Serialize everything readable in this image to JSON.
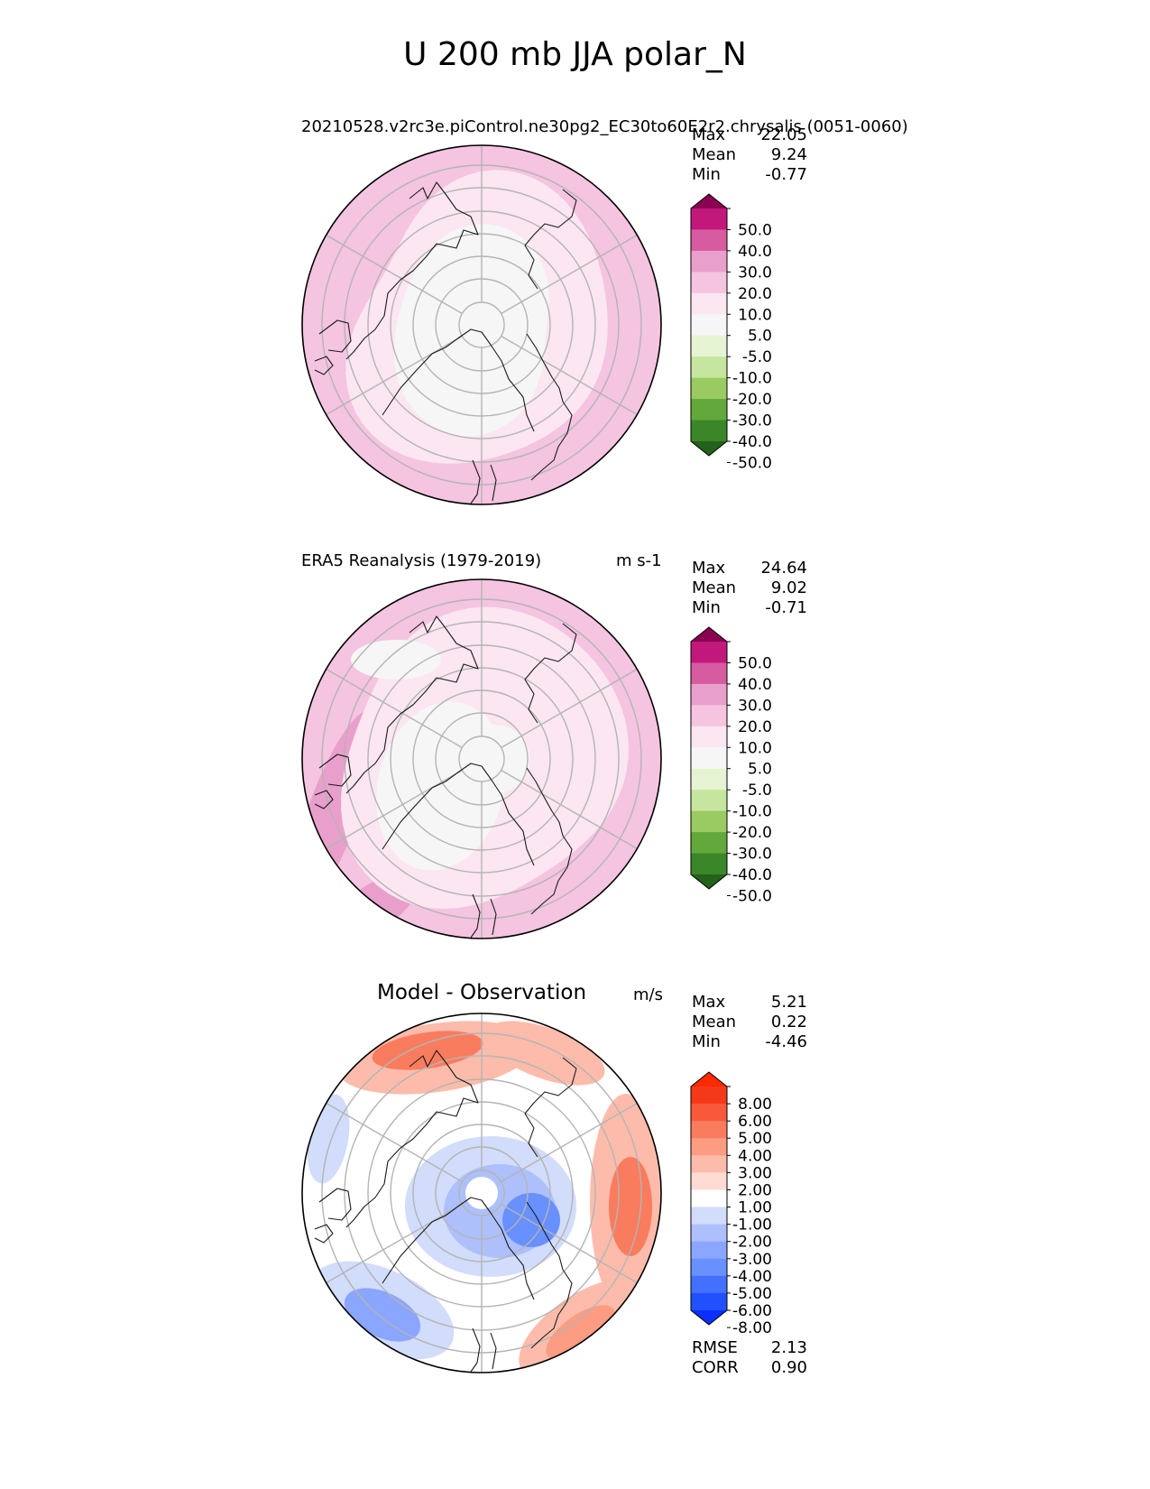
{
  "title": "U 200 mb JJA polar_N",
  "colors": {
    "sequential": [
      "#23621b",
      "#3a8628",
      "#62a83a",
      "#99cb62",
      "#c6e59e",
      "#e6f4d4",
      "#f6f6f6",
      "#fbe6f1",
      "#f4c4e0",
      "#e99fcb",
      "#d65ba0",
      "#c2187b",
      "#8a0151"
    ],
    "diverging": [
      "#0a2fff",
      "#2050ff",
      "#4470ff",
      "#6890ff",
      "#8aa6ff",
      "#adc0fb",
      "#d2dcfb",
      "#ffffff",
      "#fedcd4",
      "#fdbcab",
      "#fc9c82",
      "#fa7c5e",
      "#f85a39",
      "#f4391a",
      "#ff2a00"
    ]
  },
  "chart_data": [
    {
      "type": "polar_contour_map",
      "title": "20210528.v2rc3e.piControl.ne30pg2_EC30to60E2r2.chrysalis (0051-0060)",
      "units": "",
      "stats": [
        {
          "label": "Max",
          "value": "22.05"
        },
        {
          "label": "Mean",
          "value": "9.24"
        },
        {
          "label": "Min",
          "value": "-0.77"
        }
      ],
      "colorbar": {
        "levels": [
          "50.0",
          "40.0",
          "30.0",
          "20.0",
          "10.0",
          "5.0",
          "-5.0",
          "-10.0",
          "-20.0",
          "-30.0",
          "-40.0",
          "-50.0"
        ],
        "extend": "both",
        "palette": "sequential"
      },
      "field_fill_order": [
        "10.0 to 20.0",
        "5.0 to 10.0",
        "-5.0 to 5.0"
      ]
    },
    {
      "type": "polar_contour_map",
      "title": "ERA5 Reanalysis (1979-2019)",
      "units": "m s-1",
      "stats": [
        {
          "label": "Max",
          "value": "24.64"
        },
        {
          "label": "Mean",
          "value": "9.02"
        },
        {
          "label": "Min",
          "value": "-0.71"
        }
      ],
      "colorbar": {
        "levels": [
          "50.0",
          "40.0",
          "30.0",
          "20.0",
          "10.0",
          "5.0",
          "-5.0",
          "-10.0",
          "-20.0",
          "-30.0",
          "-40.0",
          "-50.0"
        ],
        "extend": "both",
        "palette": "sequential"
      },
      "field_fill_order": [
        "20.0 to 30.0",
        "10.0 to 20.0",
        "5.0 to 10.0",
        "-5.0 to 5.0"
      ]
    },
    {
      "type": "polar_contour_map",
      "title": "Model - Observation",
      "units": "m/s",
      "stats": [
        {
          "label": "Max",
          "value": "5.21"
        },
        {
          "label": "Mean",
          "value": "0.22"
        },
        {
          "label": "Min",
          "value": "-4.46"
        }
      ],
      "colorbar": {
        "levels": [
          "8.00",
          "6.00",
          "5.00",
          "4.00",
          "3.00",
          "2.00",
          "1.00",
          "-1.00",
          "-2.00",
          "-3.00",
          "-4.00",
          "-5.00",
          "-6.00",
          "-8.00"
        ],
        "extend": "both",
        "palette": "diverging"
      },
      "metrics": [
        {
          "label": "RMSE",
          "value": "2.13"
        },
        {
          "label": "CORR",
          "value": "0.90"
        }
      ]
    }
  ]
}
